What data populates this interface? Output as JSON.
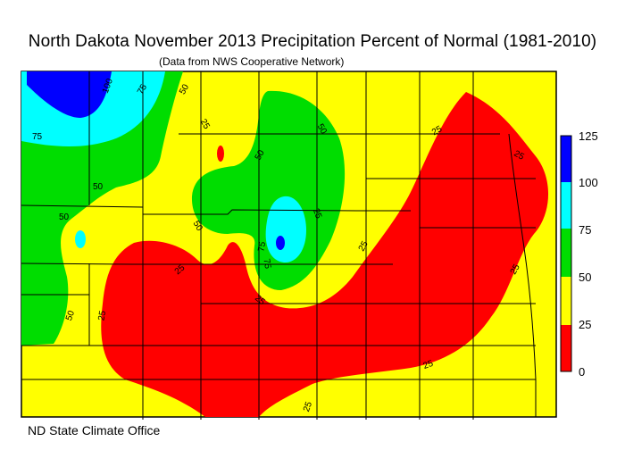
{
  "title": "North Dakota November 2013 Precipitation Percent of Normal (1981-2010)",
  "subtitle": "(Data from NWS Cooperative Network)",
  "footer": "ND State Climate Office",
  "colorbar": {
    "levels": [
      "125",
      "100",
      "75",
      "50",
      "25",
      "0"
    ],
    "colors": [
      "#0000ff",
      "#00ffff",
      "#00dd00",
      "#ffff00",
      "#ff0000"
    ]
  },
  "contour_labels": [
    "100",
    "75",
    "50",
    "75",
    "50",
    "50",
    "50",
    "50",
    "50",
    "75",
    "75",
    "25",
    "25",
    "25",
    "25",
    "25",
    "25",
    "25",
    "25",
    "25",
    "25",
    "50",
    "25"
  ],
  "colors": {
    "low": "#ff0000",
    "below": "#ffff00",
    "near": "#00dd00",
    "above": "#00ffff",
    "high": "#0000ff"
  }
}
